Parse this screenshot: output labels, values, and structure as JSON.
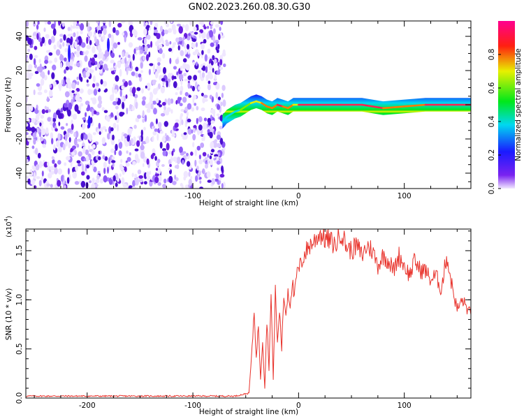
{
  "title": "GN02.2023.260.08.30.G30",
  "colors": {
    "snr_line": "#e8312a",
    "noise_purple": "#6a1fe0",
    "frame": "#000000"
  },
  "colorbar": {
    "label": "Normalized spectral amplitude",
    "ticks": [
      0.0,
      0.2,
      0.4,
      0.6,
      0.8
    ],
    "tick_labels": [
      "0.0",
      "0.2",
      "0.4",
      "0.6",
      "0.8"
    ],
    "range": [
      0,
      1
    ],
    "colormap": "rainbow (purple-blue-cyan-green-yellow-red-magenta)"
  },
  "chart_data": [
    {
      "type": "heatmap",
      "xlabel": "Height of straight line (km)",
      "ylabel": "Frequency (Hz)",
      "xlim": [
        -258,
        163
      ],
      "ylim": [
        -49,
        49
      ],
      "x_ticks": [
        -200,
        -100,
        0,
        100
      ],
      "x_tick_labels": [
        "-200",
        "-100",
        "0",
        "100"
      ],
      "y_ticks": [
        -40,
        -20,
        0,
        20,
        40
      ],
      "y_tick_labels": [
        "-40",
        "-20",
        "0",
        "20",
        "40"
      ],
      "noise_region_x": [
        -258,
        -70
      ],
      "ridge": {
        "x": [
          -72,
          -68,
          -60,
          -55,
          -50,
          -45,
          -40,
          -35,
          -30,
          -25,
          -20,
          -15,
          -10,
          -5,
          0,
          20,
          40,
          60,
          80,
          100,
          120,
          140,
          163
        ],
        "freq": [
          -10,
          -7,
          -4,
          -3,
          -1,
          1,
          2,
          1,
          -1,
          -2,
          0,
          -1,
          -2,
          0,
          0,
          0,
          0,
          0,
          -2,
          -1,
          0,
          0,
          0
        ],
        "peak_amplitude": [
          0.2,
          0.3,
          0.45,
          0.55,
          0.6,
          0.7,
          0.75,
          0.8,
          0.85,
          0.8,
          0.9,
          0.85,
          0.8,
          0.75,
          0.95,
          0.95,
          0.95,
          0.9,
          0.85,
          0.85,
          0.9,
          0.9,
          0.85
        ]
      }
    },
    {
      "type": "line",
      "xlabel": "Height of straight line (km)",
      "ylabel": "SNR (10 * v/v)",
      "y_multiplier": "(x10",
      "y_multiplier_exp": "4",
      "y_multiplier_close": ")",
      "xlim": [
        -258,
        163
      ],
      "ylim": [
        0,
        1.72
      ],
      "x_ticks": [
        -200,
        -100,
        0,
        100
      ],
      "x_tick_labels": [
        "-200",
        "-100",
        "0",
        "100"
      ],
      "y_ticks": [
        0,
        0.5,
        1.0,
        1.5
      ],
      "y_tick_labels": [
        "0.0",
        "0.5",
        "1.0",
        "1.5"
      ],
      "series": [
        {
          "x": [
            -258,
            -200,
            -100,
            -60,
            -47,
            -44,
            -42,
            -40,
            -38,
            -36,
            -34,
            -32,
            -30,
            -28,
            -26,
            -24,
            -22,
            -20,
            -18,
            -16,
            -14,
            -12,
            -10,
            -8,
            -6,
            -4,
            -2,
            0,
            5,
            10,
            15,
            20,
            25,
            30,
            35,
            40,
            45,
            50,
            55,
            60,
            65,
            70,
            75,
            80,
            85,
            90,
            95,
            100,
            105,
            110,
            115,
            120,
            125,
            130,
            135,
            140,
            145,
            150,
            155,
            160,
            163
          ],
          "y": [
            0.02,
            0.02,
            0.02,
            0.02,
            0.05,
            0.5,
            0.9,
            0.4,
            0.75,
            0.2,
            0.6,
            0.1,
            0.8,
            0.3,
            1.05,
            0.2,
            1.1,
            0.55,
            0.9,
            0.5,
            1.05,
            0.85,
            1.1,
            0.95,
            1.2,
            1.0,
            1.25,
            1.3,
            1.45,
            1.55,
            1.6,
            1.68,
            1.62,
            1.6,
            1.55,
            1.7,
            1.55,
            1.5,
            1.55,
            1.45,
            1.55,
            1.5,
            1.35,
            1.45,
            1.4,
            1.3,
            1.45,
            1.35,
            1.25,
            1.4,
            1.3,
            1.3,
            1.2,
            1.25,
            1.1,
            1.45,
            1.15,
            0.9,
            1.0,
            0.9,
            0.85
          ]
        }
      ]
    }
  ]
}
